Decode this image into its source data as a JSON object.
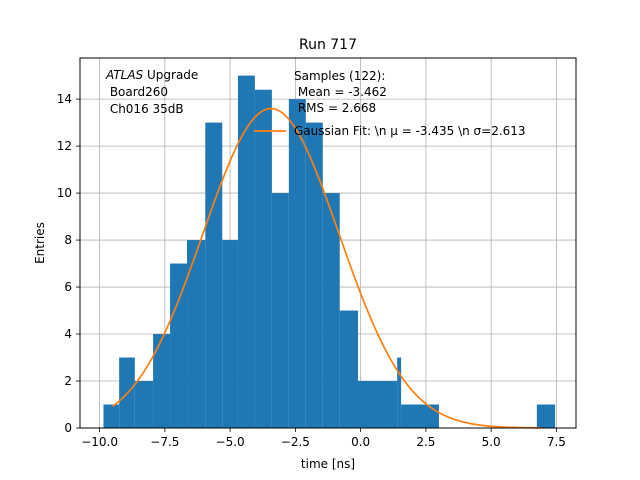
{
  "chart_data": {
    "type": "bar",
    "title": "Run 717",
    "xlabel": "time [ns]",
    "ylabel": "Entries",
    "xlim": [
      -10.75,
      8.25
    ],
    "ylim": [
      0,
      15.75
    ],
    "x_ticks": [
      -10.0,
      -7.5,
      -5.0,
      -2.5,
      0.0,
      2.5,
      5.0,
      7.5
    ],
    "x_tick_labels": [
      "−10.0",
      "−7.5",
      "−5.0",
      "−2.5",
      "0.0",
      "2.5",
      "5.0",
      "7.5"
    ],
    "y_ticks": [
      0,
      2,
      4,
      6,
      8,
      10,
      12,
      14
    ],
    "y_tick_labels": [
      "0",
      "2",
      "4",
      "6",
      "8",
      "10",
      "12",
      "14"
    ],
    "grid": true,
    "bar_color": "#1f77b4",
    "fit_color": "#ff7f0e",
    "bins": [
      {
        "x0": -9.85,
        "x1": -9.25,
        "count": 1
      },
      {
        "x0": -9.25,
        "x1": -8.65,
        "count": 3
      },
      {
        "x0": -8.65,
        "x1": -7.95,
        "count": 2
      },
      {
        "x0": -7.95,
        "x1": -7.3,
        "count": 4
      },
      {
        "x0": -7.3,
        "x1": -6.65,
        "count": 7
      },
      {
        "x0": -6.65,
        "x1": -5.95,
        "count": 8
      },
      {
        "x0": -5.95,
        "x1": -5.3,
        "count": 13
      },
      {
        "x0": -5.3,
        "x1": -4.7,
        "count": 8
      },
      {
        "x0": -4.7,
        "x1": -4.05,
        "count": 15
      },
      {
        "x0": -4.05,
        "x1": -3.4,
        "count": 14.4
      },
      {
        "x0": -3.4,
        "x1": -2.75,
        "count": 10
      },
      {
        "x0": -2.75,
        "x1": -2.1,
        "count": 14
      },
      {
        "x0": -2.1,
        "x1": -1.45,
        "count": 13
      },
      {
        "x0": -1.45,
        "x1": -0.8,
        "count": 10
      },
      {
        "x0": -0.8,
        "x1": -0.1,
        "count": 5
      },
      {
        "x0": -0.1,
        "x1": 1.4,
        "count": 2
      },
      {
        "x0": 1.4,
        "x1": 1.55,
        "count": 3
      },
      {
        "x0": 1.55,
        "x1": 3.0,
        "count": 1
      },
      {
        "x0": 6.75,
        "x1": 7.45,
        "count": 1
      }
    ],
    "fit": {
      "mu": -3.435,
      "sigma": 2.613,
      "amplitude": 13.6,
      "x_start": -9.5,
      "x_end": 6.9
    },
    "legend": {
      "placement": "top-right",
      "samples_label": "Samples (122):\n Mean = -3.462\n RMS = 2.668",
      "fit_label": "Gaussian Fit: \\n μ = -3.435 \\n σ=2.613"
    },
    "annotation": {
      "line1_italic": "ATLAS",
      "line1_rest": " Upgrade",
      "line2": " Board260",
      "line3": " Ch016 35dB"
    }
  }
}
